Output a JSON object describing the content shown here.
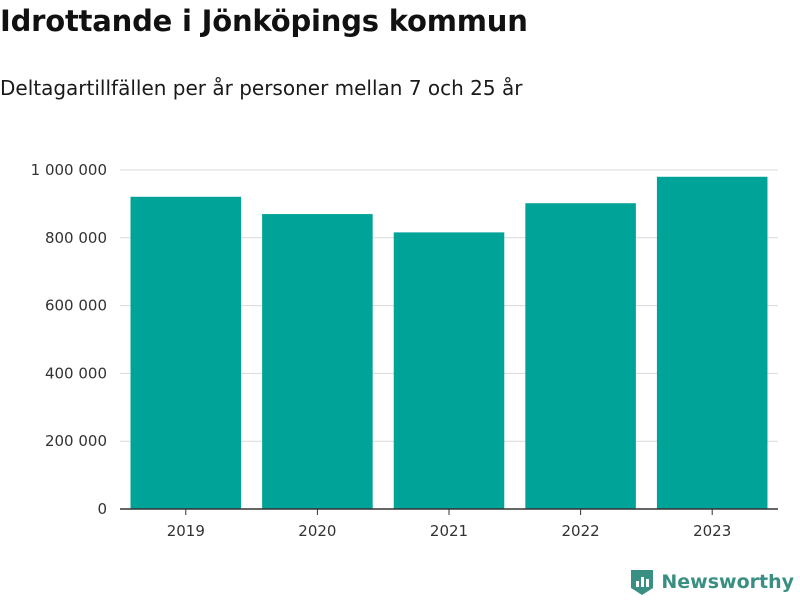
{
  "header": {
    "title": "Idrottande i Jönköpings kommun",
    "subtitle": "Deltagartillfällen per år personer mellan 7 och 25 år"
  },
  "brand": {
    "name": "Newsworthy",
    "icon": "newsworthy-logo-icon",
    "color": "#3a8f83"
  },
  "colors": {
    "bar": "#00a398",
    "grid": "#d9d9d9",
    "axis": "#333333"
  },
  "chart_data": {
    "type": "bar",
    "title": "Idrottande i Jönköpings kommun",
    "subtitle": "Deltagartillfällen per år personer mellan 7 och 25 år",
    "xlabel": "",
    "ylabel": "",
    "categories": [
      "2019",
      "2020",
      "2021",
      "2022",
      "2023"
    ],
    "values": [
      921000,
      870000,
      816000,
      902000,
      980000
    ],
    "ylim": [
      0,
      1000000
    ],
    "yticks": [
      0,
      200000,
      400000,
      600000,
      800000,
      1000000
    ],
    "ytick_labels": [
      "0",
      "200 000",
      "400 000",
      "600 000",
      "800 000",
      "1 000 000"
    ],
    "grid": true,
    "legend": "none"
  }
}
